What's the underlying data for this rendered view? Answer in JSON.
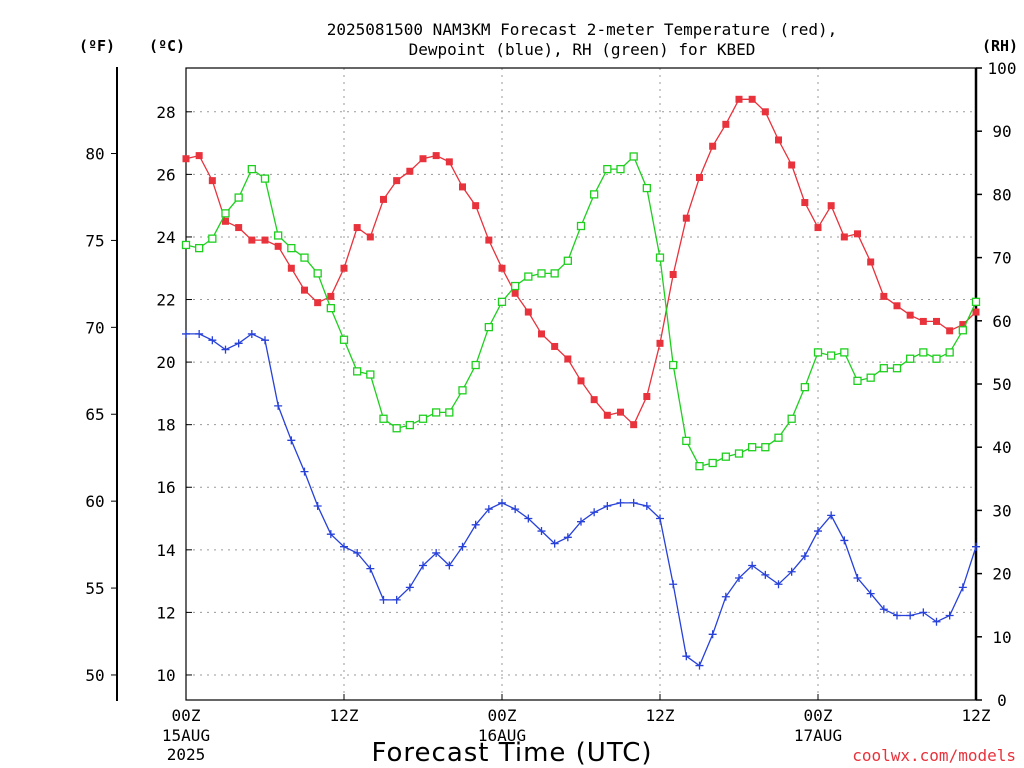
{
  "title_line1": "2025081500 NAM3KM Forecast 2-meter Temperature (red),",
  "title_line2": "Dewpoint (blue), RH (green) for KBED",
  "unit_f": "(ºF)",
  "unit_c": "(ºC)",
  "unit_rh": "(RH)",
  "xlabel": "Forecast Time (UTC)",
  "credit": "coolwx.com/models",
  "colors": {
    "temperature": "#e8323c",
    "dewpoint": "#2741d9",
    "rh": "#1ecf1e",
    "credit": "#e8323c",
    "grid": "#9a9a9a"
  },
  "chart_data": {
    "type": "line",
    "x_unit": "forecast hour",
    "xlim": [
      0,
      60
    ],
    "x_ticks": [
      {
        "hour": 0,
        "label": "00Z",
        "sub1": "15AUG",
        "sub2": "2025"
      },
      {
        "hour": 12,
        "label": "12Z",
        "sub1": "",
        "sub2": ""
      },
      {
        "hour": 24,
        "label": "00Z",
        "sub1": "16AUG",
        "sub2": ""
      },
      {
        "hour": 36,
        "label": "12Z",
        "sub1": "",
        "sub2": ""
      },
      {
        "hour": 48,
        "label": "00Z",
        "sub1": "17AUG",
        "sub2": ""
      },
      {
        "hour": 60,
        "label": "12Z",
        "sub1": "",
        "sub2": ""
      }
    ],
    "y_celsius": {
      "lim": [
        9.2,
        29.4
      ],
      "ticks": [
        10,
        12,
        14,
        16,
        18,
        20,
        22,
        24,
        26,
        28
      ],
      "grid": true
    },
    "y_fahrenheit": {
      "ticks": [
        50,
        55,
        60,
        65,
        70,
        75,
        80
      ]
    },
    "y_rh": {
      "lim": [
        0,
        100
      ],
      "ticks": [
        0,
        10,
        20,
        30,
        40,
        50,
        60,
        70,
        80,
        90,
        100
      ]
    },
    "x": [
      0,
      1,
      2,
      3,
      4,
      5,
      6,
      7,
      8,
      9,
      10,
      11,
      12,
      13,
      14,
      15,
      16,
      17,
      18,
      19,
      20,
      21,
      22,
      23,
      24,
      25,
      26,
      27,
      28,
      29,
      30,
      31,
      32,
      33,
      34,
      35,
      36,
      37,
      38,
      39,
      40,
      41,
      42,
      43,
      44,
      45,
      46,
      47,
      48,
      49,
      50,
      51,
      52,
      53,
      54,
      55,
      56,
      57,
      58,
      59,
      60
    ],
    "series": [
      {
        "name": "Temperature",
        "axis": "celsius",
        "marker": "filled-square",
        "values": [
          26.5,
          26.6,
          25.8,
          24.5,
          24.3,
          23.9,
          23.9,
          23.7,
          23.0,
          22.3,
          21.9,
          22.1,
          23.0,
          24.3,
          24.0,
          25.2,
          25.8,
          26.1,
          26.5,
          26.6,
          26.4,
          25.6,
          25.0,
          23.9,
          23.0,
          22.2,
          21.6,
          20.9,
          20.5,
          20.1,
          19.4,
          18.8,
          18.3,
          18.4,
          18.0,
          18.9,
          20.6,
          22.8,
          24.6,
          25.9,
          26.9,
          27.6,
          28.4,
          28.4,
          28.0,
          27.1,
          26.3,
          25.1,
          24.3,
          25.0,
          24.0,
          24.1,
          23.2,
          22.1,
          21.8,
          21.5,
          21.3,
          21.3,
          21.0,
          21.2,
          21.6
        ]
      },
      {
        "name": "Dewpoint",
        "axis": "celsius",
        "marker": "plus",
        "values": [
          20.9,
          20.9,
          20.7,
          20.4,
          20.6,
          20.9,
          20.7,
          18.6,
          17.5,
          16.5,
          15.4,
          14.5,
          14.1,
          13.9,
          13.4,
          12.4,
          12.4,
          12.8,
          13.5,
          13.9,
          13.5,
          14.1,
          14.8,
          15.3,
          15.5,
          15.3,
          15.0,
          14.6,
          14.2,
          14.4,
          14.9,
          15.2,
          15.4,
          15.5,
          15.5,
          15.4,
          15.0,
          12.9,
          10.6,
          10.3,
          11.3,
          12.5,
          13.1,
          13.5,
          13.2,
          12.9,
          13.3,
          13.8,
          14.6,
          15.1,
          14.3,
          13.1,
          12.6,
          12.1,
          11.9,
          11.9,
          12.0,
          11.7,
          11.9,
          12.8,
          14.1
        ]
      },
      {
        "name": "RH",
        "axis": "rh",
        "marker": "open-square",
        "values": [
          72,
          71.5,
          73,
          77,
          79.5,
          84,
          82.5,
          73.5,
          71.5,
          70,
          67.5,
          62,
          57,
          52,
          51.5,
          44.5,
          43,
          43.5,
          44.5,
          45.5,
          45.5,
          49,
          53,
          59,
          63,
          65.5,
          67,
          67.5,
          67.5,
          69.5,
          75,
          80,
          84,
          84,
          86,
          81,
          70,
          53,
          41,
          37,
          37.5,
          38.5,
          39,
          40,
          40,
          41.5,
          44.5,
          49.5,
          55,
          54.5,
          55,
          50.5,
          51,
          52.5,
          52.5,
          54,
          55,
          54,
          55,
          58.5,
          63
        ]
      }
    ]
  }
}
